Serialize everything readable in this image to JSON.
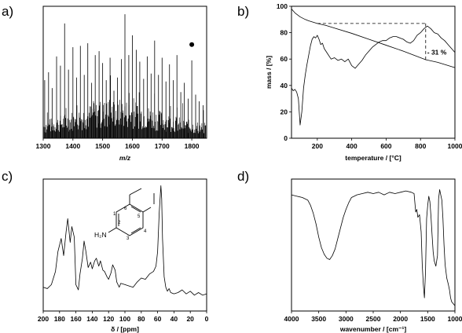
{
  "chart_data": [
    {
      "panel": "a)",
      "type": "bar",
      "title": "",
      "xlabel": "m/z",
      "ylabel": "",
      "xlim": [
        1300,
        1850
      ],
      "xticks": [
        "1300",
        "1400",
        "1500",
        "1600",
        "1700",
        "1800"
      ],
      "grid": false,
      "legend": "none",
      "marker": {
        "x": 1800,
        "y": 0.71,
        "symbol": "filled-circle"
      },
      "series": [
        {
          "x": [
            1305,
            1318,
            1330,
            1345,
            1358,
            1372,
            1385,
            1400,
            1412,
            1425,
            1438,
            1450,
            1463,
            1475,
            1488,
            1500,
            1512,
            1525,
            1538,
            1550,
            1563,
            1575,
            1588,
            1600,
            1613,
            1625,
            1638,
            1650,
            1663,
            1675,
            1688,
            1700,
            1713,
            1725,
            1738,
            1750,
            1763,
            1775,
            1788,
            1800,
            1813,
            1825,
            1838
          ],
          "y": [
            0.44,
            0.5,
            0.38,
            0.62,
            0.55,
            0.87,
            0.52,
            0.69,
            0.46,
            0.7,
            0.48,
            0.72,
            0.42,
            0.63,
            0.66,
            0.57,
            0.44,
            0.61,
            0.36,
            0.46,
            0.6,
            0.94,
            0.63,
            0.78,
            0.67,
            0.58,
            0.45,
            0.62,
            0.49,
            0.74,
            0.48,
            0.61,
            0.43,
            0.56,
            0.44,
            0.63,
            0.35,
            0.42,
            0.3,
            0.59,
            0.33,
            0.28,
            0.25
          ]
        }
      ]
    },
    {
      "panel": "b)",
      "type": "line",
      "title": "",
      "xlabel": "temperature / [°C]",
      "ylabel": "mass / [%]",
      "xlim": [
        50,
        1000
      ],
      "ylim": [
        0,
        100
      ],
      "xticks": [
        "200",
        "400",
        "600",
        "800",
        "1000"
      ],
      "yticks": [
        "0",
        "20",
        "40",
        "60",
        "80",
        "100"
      ],
      "grid": false,
      "legend": "none",
      "annotation": {
        "text": "- 31 %",
        "x": 830,
        "y_from": 87,
        "y_to": 59
      },
      "series": [
        {
          "x": [
            50,
            70,
            100,
            130,
            150,
            200,
            250,
            300,
            400,
            500,
            600,
            700,
            800,
            830,
            900,
            1000
          ],
          "y": [
            98,
            95,
            92,
            90,
            89,
            87,
            85.5,
            83.5,
            79.5,
            75,
            70.5,
            66,
            61,
            59.5,
            57.5,
            53.5
          ]
        },
        {
          "x": [
            50,
            60,
            70,
            80,
            90,
            100,
            110,
            120,
            130,
            140,
            150,
            160,
            170,
            180,
            190,
            200,
            210,
            220,
            230,
            240,
            260,
            280,
            300,
            320,
            340,
            360,
            380,
            400,
            420,
            440,
            460,
            480,
            500,
            520,
            540,
            560,
            580,
            600,
            620,
            640,
            660,
            680,
            700,
            720,
            740,
            760,
            780,
            800,
            820,
            840,
            860,
            880,
            900,
            920,
            940,
            960,
            980,
            1000
          ],
          "y": [
            38,
            36,
            37,
            35,
            30,
            10,
            20,
            38,
            48,
            56,
            63,
            70,
            75,
            77,
            76,
            78,
            75,
            71,
            72,
            68,
            64,
            60,
            61,
            59,
            60,
            58,
            60,
            55,
            53,
            56,
            59,
            63,
            66,
            69,
            71,
            73,
            74,
            74,
            76,
            77,
            77,
            76,
            75,
            73,
            72,
            74,
            78,
            80,
            83,
            85,
            83,
            80,
            79,
            76,
            74,
            71,
            68,
            65
          ]
        }
      ]
    },
    {
      "panel": "c)",
      "type": "line",
      "title": "",
      "xlabel": "δ / [ppm]",
      "ylabel": "",
      "xlim": [
        200,
        0
      ],
      "xticks": [
        "200",
        "180",
        "160",
        "140",
        "120",
        "100",
        "80",
        "60",
        "40",
        "20",
        "0"
      ],
      "grid": false,
      "legend": "none",
      "series": [
        {
          "x": [
            200,
            195,
            190,
            185,
            182,
            178,
            175,
            172,
            170,
            167,
            165,
            162,
            160,
            157,
            155,
            152,
            150,
            148,
            145,
            142,
            140,
            137,
            135,
            132,
            130,
            127,
            125,
            122,
            120,
            117,
            115,
            112,
            110,
            107,
            105,
            100,
            95,
            90,
            85,
            80,
            75,
            70,
            65,
            62,
            60,
            58,
            56,
            55,
            54,
            52,
            50,
            48,
            46,
            44,
            40,
            35,
            30,
            25,
            20,
            15,
            10,
            5,
            0
          ],
          "y": [
            0.18,
            0.17,
            0.2,
            0.3,
            0.45,
            0.55,
            0.42,
            0.6,
            0.7,
            0.52,
            0.64,
            0.56,
            0.2,
            0.16,
            0.28,
            0.4,
            0.53,
            0.46,
            0.33,
            0.37,
            0.32,
            0.38,
            0.4,
            0.34,
            0.38,
            0.31,
            0.3,
            0.26,
            0.24,
            0.29,
            0.35,
            0.31,
            0.22,
            0.18,
            0.21,
            0.2,
            0.19,
            0.18,
            0.22,
            0.25,
            0.24,
            0.28,
            0.3,
            0.34,
            0.45,
            0.75,
            0.95,
            0.85,
            0.55,
            0.26,
            0.18,
            0.15,
            0.17,
            0.14,
            0.13,
            0.14,
            0.16,
            0.13,
            0.15,
            0.12,
            0.14,
            0.12,
            0.13
          ]
        }
      ]
    },
    {
      "panel": "d)",
      "type": "line",
      "title": "",
      "xlabel": "wavenumber / [cm⁻¹]",
      "ylabel": "",
      "xlim": [
        4000,
        1000
      ],
      "xticks": [
        "4000",
        "3500",
        "3000",
        "2500",
        "2000",
        "1500",
        "1000"
      ],
      "grid": false,
      "legend": "none",
      "series": [
        {
          "x": [
            4000,
            3900,
            3800,
            3700,
            3650,
            3600,
            3550,
            3500,
            3450,
            3400,
            3350,
            3300,
            3250,
            3200,
            3150,
            3100,
            3050,
            3000,
            2950,
            2900,
            2850,
            2800,
            2700,
            2600,
            2500,
            2400,
            2300,
            2200,
            2100,
            2000,
            1900,
            1800,
            1750,
            1720,
            1700,
            1680,
            1650,
            1620,
            1600,
            1580,
            1560,
            1540,
            1520,
            1500,
            1480,
            1460,
            1440,
            1420,
            1400,
            1380,
            1350,
            1320,
            1300,
            1280,
            1260,
            1240,
            1220,
            1200,
            1180,
            1150,
            1120,
            1100,
            1080,
            1060,
            1040,
            1020,
            1000
          ],
          "y": [
            0.88,
            0.87,
            0.86,
            0.84,
            0.8,
            0.74,
            0.66,
            0.56,
            0.48,
            0.43,
            0.4,
            0.39,
            0.42,
            0.47,
            0.55,
            0.63,
            0.71,
            0.77,
            0.82,
            0.86,
            0.87,
            0.88,
            0.89,
            0.9,
            0.89,
            0.9,
            0.88,
            0.9,
            0.89,
            0.9,
            0.91,
            0.9,
            0.89,
            0.75,
            0.77,
            0.71,
            0.73,
            0.6,
            0.35,
            0.2,
            0.1,
            0.3,
            0.7,
            0.8,
            0.87,
            0.83,
            0.72,
            0.58,
            0.45,
            0.38,
            0.34,
            0.42,
            0.85,
            0.92,
            0.88,
            0.84,
            0.7,
            0.5,
            0.35,
            0.25,
            0.2,
            0.16,
            0.1,
            0.07,
            0.06,
            0.05,
            0.04
          ]
        }
      ]
    }
  ],
  "molecule": {
    "amine": "H₂N",
    "positions": [
      "1",
      "2",
      "3",
      "4",
      "5",
      "6"
    ]
  }
}
